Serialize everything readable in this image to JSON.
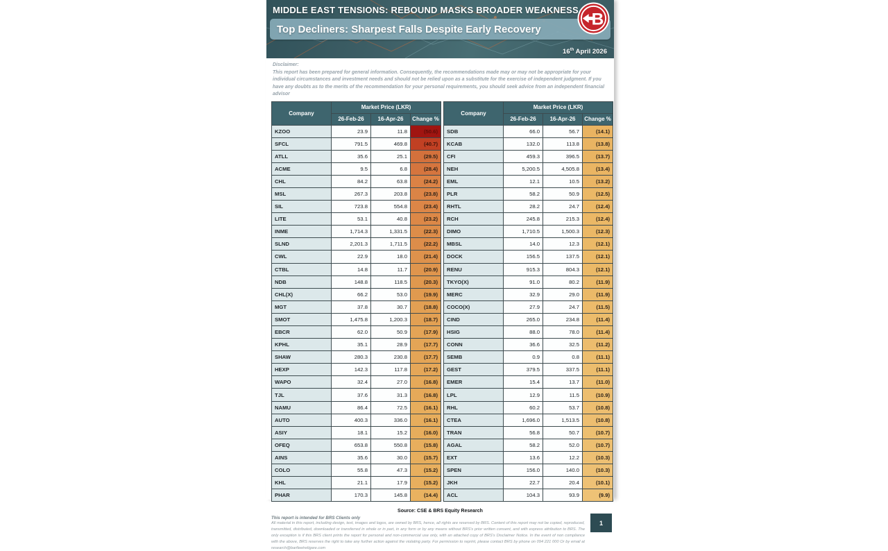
{
  "header": {
    "title": "MIDDLE EAST TENSIONS: REBOUND MASKS BROADER WEAKNESS",
    "subtitle": "Top Decliners: Sharpest Falls Despite Early Recovery",
    "date_day": "16",
    "date_suffix": "th",
    "date_rest": " April 2026",
    "logo_letter": "B"
  },
  "disclaimer": {
    "label": "Disclaimer:",
    "text": "This report has been prepared for general information. Consequently, the recommendations made may or may not be appropriate for your individual circumstances and investment needs and should not be relied upon as a substitute for the exercise of independent judgment. If you have any doubts as to the merits of the recommendation for your personal requirements, you should seek advice from an independent financial advisor"
  },
  "table_headers": {
    "company": "Company",
    "price_group": "Market Price (LKR)",
    "period1": "26-Feb-26",
    "period2": "16-Apr-26",
    "change": "Change %"
  },
  "tables": [
    {
      "rows": [
        [
          "KZOO",
          "23.9",
          "11.8",
          50.6
        ],
        [
          "SFCL",
          "791.5",
          "469.8",
          40.7
        ],
        [
          "ATLL",
          "35.6",
          "25.1",
          29.5
        ],
        [
          "ACME",
          "9.5",
          "6.8",
          28.4
        ],
        [
          "CHL",
          "84.2",
          "63.8",
          24.2
        ],
        [
          "MSL",
          "267.3",
          "203.8",
          23.8
        ],
        [
          "SIL",
          "723.8",
          "554.8",
          23.4
        ],
        [
          "LITE",
          "53.1",
          "40.8",
          23.2
        ],
        [
          "INME",
          "1,714.3",
          "1,331.5",
          22.3
        ],
        [
          "SLND",
          "2,201.3",
          "1,711.5",
          22.2
        ],
        [
          "CWL",
          "22.9",
          "18.0",
          21.4
        ],
        [
          "CTBL",
          "14.8",
          "11.7",
          20.9
        ],
        [
          "NDB",
          "148.8",
          "118.5",
          20.3
        ],
        [
          "CHL(X)",
          "66.2",
          "53.0",
          19.9
        ],
        [
          "MGT",
          "37.8",
          "30.7",
          18.8
        ],
        [
          "SMOT",
          "1,475.8",
          "1,200.3",
          18.7
        ],
        [
          "EBCR",
          "62.0",
          "50.9",
          17.9
        ],
        [
          "KPHL",
          "35.1",
          "28.9",
          17.7
        ],
        [
          "SHAW",
          "280.3",
          "230.8",
          17.7
        ],
        [
          "HEXP",
          "142.3",
          "117.8",
          17.2
        ],
        [
          "WAPO",
          "32.4",
          "27.0",
          16.8
        ],
        [
          "TJL",
          "37.6",
          "31.3",
          16.8
        ],
        [
          "NAMU",
          "86.4",
          "72.5",
          16.1
        ],
        [
          "AUTO",
          "400.3",
          "336.0",
          16.1
        ],
        [
          "ASIY",
          "18.1",
          "15.2",
          16.0
        ],
        [
          "OFEQ",
          "653.8",
          "550.8",
          15.8
        ],
        [
          "AINS",
          "35.6",
          "30.0",
          15.7
        ],
        [
          "COLO",
          "55.8",
          "47.3",
          15.2
        ],
        [
          "KHL",
          "21.1",
          "17.9",
          15.2
        ],
        [
          "PHAR",
          "170.3",
          "145.8",
          14.4
        ]
      ]
    },
    {
      "rows": [
        [
          "SDB",
          "66.0",
          "56.7",
          14.1
        ],
        [
          "KCAB",
          "132.0",
          "113.8",
          13.8
        ],
        [
          "CFI",
          "459.3",
          "396.5",
          13.7
        ],
        [
          "NEH",
          "5,200.5",
          "4,505.8",
          13.4
        ],
        [
          "EML",
          "12.1",
          "10.5",
          13.2
        ],
        [
          "PLR",
          "58.2",
          "50.9",
          12.5
        ],
        [
          "RHTL",
          "28.2",
          "24.7",
          12.4
        ],
        [
          "RCH",
          "245.8",
          "215.3",
          12.4
        ],
        [
          "DIMO",
          "1,710.5",
          "1,500.3",
          12.3
        ],
        [
          "MBSL",
          "14.0",
          "12.3",
          12.1
        ],
        [
          "DOCK",
          "156.5",
          "137.5",
          12.1
        ],
        [
          "RENU",
          "915.3",
          "804.3",
          12.1
        ],
        [
          "TKYO(X)",
          "91.0",
          "80.2",
          11.9
        ],
        [
          "MERC",
          "32.9",
          "29.0",
          11.9
        ],
        [
          "COCO(X)",
          "27.9",
          "24.7",
          11.5
        ],
        [
          "CIND",
          "265.0",
          "234.8",
          11.4
        ],
        [
          "HSIG",
          "88.0",
          "78.0",
          11.4
        ],
        [
          "CONN",
          "36.6",
          "32.5",
          11.2
        ],
        [
          "SEMB",
          "0.9",
          "0.8",
          11.1
        ],
        [
          "GEST",
          "379.5",
          "337.5",
          11.1
        ],
        [
          "EMER",
          "15.4",
          "13.7",
          11.0
        ],
        [
          "LPL",
          "12.9",
          "11.5",
          10.9
        ],
        [
          "RHL",
          "60.2",
          "53.7",
          10.8
        ],
        [
          "CTEA",
          "1,696.0",
          "1,513.5",
          10.8
        ],
        [
          "TRAN",
          "56.8",
          "50.7",
          10.7
        ],
        [
          "AGAL",
          "58.2",
          "52.0",
          10.7
        ],
        [
          "EXT",
          "13.6",
          "12.2",
          10.3
        ],
        [
          "SPEN",
          "156.0",
          "140.0",
          10.3
        ],
        [
          "JKH",
          "22.7",
          "20.4",
          10.1
        ],
        [
          "ACL",
          "104.3",
          "93.9",
          9.9
        ]
      ]
    }
  ],
  "heat_scale": {
    "stops": [
      [
        9.9,
        [
          238,
          194,
          118
        ]
      ],
      [
        12,
        [
          235,
          185,
          103
        ]
      ],
      [
        16,
        [
          231,
          173,
          92
        ]
      ],
      [
        20,
        [
          224,
          154,
          79
        ]
      ],
      [
        24,
        [
          219,
          131,
          69
        ]
      ],
      [
        29.5,
        [
          211,
          113,
          60
        ]
      ],
      [
        40.7,
        [
          193,
          64,
          35
        ]
      ],
      [
        50.6,
        [
          160,
          21,
          17
        ]
      ]
    ]
  },
  "colors": {
    "header_teal": "#3e656e",
    "band_blue": "#85a9b5",
    "logo_red": "#c5252b",
    "page_teal": "#2d4b53",
    "company_cell": "#dce8ea"
  },
  "footer": {
    "source": "Source: CSE & BRS Equity Research",
    "intended": "This report is intended for BRS Clients only",
    "legal": "All material in this report, including design, text, images and logos, are owned by BRS, hence, all rights are reserved by BRS. Content of this report may not be copied, reproduced, transmitted, distributed, downloaded or transferred in whole or in part, in any form or by any means without BRS's prior written consent, and with express attribution to BRS. The only exception is if this BRS client prints the report for personal and non-commercial use only, with an attached copy of BRS's Disclaimer Notice. In the event of non compliance with the above, BRS reserves the right to take any further action against the violating party. For permission to reprint, please contact BRS by phone on 094 221 000 Or by email at research@bartleetreligare.com",
    "page_number": "1"
  }
}
